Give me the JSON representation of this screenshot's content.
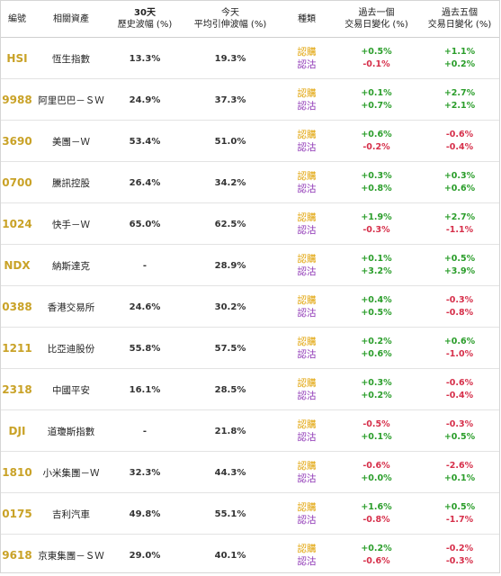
{
  "header": {
    "code": "編號",
    "asset": "相關資產",
    "hv_line1": "30天",
    "hv_line2": "歷史波幅 (%)",
    "iv_line1": "今天",
    "iv_line2": "平均引伸波幅 (%)",
    "type": "種類",
    "d1_line1": "過去一個",
    "d1_line2": "交易日變化 (%)",
    "d5_line1": "過去五個",
    "d5_line2": "交易日變化 (%)"
  },
  "labels": {
    "bull": "認購",
    "bear": "認沽"
  },
  "rows": [
    {
      "code": "HSI",
      "name": "恆生指數",
      "hv": "13.3%",
      "iv": "19.3%",
      "d1_bull": "+0.5%",
      "d1_bear": "-0.1%",
      "d5_bull": "+1.1%",
      "d5_bear": "+0.2%"
    },
    {
      "code": "9988",
      "name": "阿里巴巴－ＳＷ",
      "hv": "24.9%",
      "iv": "37.3%",
      "d1_bull": "+0.1%",
      "d1_bear": "+0.7%",
      "d5_bull": "+2.7%",
      "d5_bear": "+2.1%"
    },
    {
      "code": "3690",
      "name": "美團－Ｗ",
      "hv": "53.4%",
      "iv": "51.0%",
      "d1_bull": "+0.6%",
      "d1_bear": "-0.2%",
      "d5_bull": "-0.6%",
      "d5_bear": "-0.4%"
    },
    {
      "code": "0700",
      "name": "騰訊控股",
      "hv": "26.4%",
      "iv": "34.2%",
      "d1_bull": "+0.3%",
      "d1_bear": "+0.8%",
      "d5_bull": "+0.3%",
      "d5_bear": "+0.6%"
    },
    {
      "code": "1024",
      "name": "快手－Ｗ",
      "hv": "65.0%",
      "iv": "62.5%",
      "d1_bull": "+1.9%",
      "d1_bear": "-0.3%",
      "d5_bull": "+2.7%",
      "d5_bear": "-1.1%"
    },
    {
      "code": "NDX",
      "name": "納斯達克",
      "hv": "-",
      "iv": "28.9%",
      "d1_bull": "+0.1%",
      "d1_bear": "+3.2%",
      "d5_bull": "+0.5%",
      "d5_bear": "+3.9%"
    },
    {
      "code": "0388",
      "name": "香港交易所",
      "hv": "24.6%",
      "iv": "30.2%",
      "d1_bull": "+0.4%",
      "d1_bear": "+0.5%",
      "d5_bull": "-0.3%",
      "d5_bear": "-0.8%"
    },
    {
      "code": "1211",
      "name": "比亞迪股份",
      "hv": "55.8%",
      "iv": "57.5%",
      "d1_bull": "+0.2%",
      "d1_bear": "+0.6%",
      "d5_bull": "+0.6%",
      "d5_bear": "-1.0%"
    },
    {
      "code": "2318",
      "name": "中國平安",
      "hv": "16.1%",
      "iv": "28.5%",
      "d1_bull": "+0.3%",
      "d1_bear": "+0.2%",
      "d5_bull": "-0.6%",
      "d5_bear": "-0.4%"
    },
    {
      "code": "DJI",
      "name": "道瓊斯指數",
      "hv": "-",
      "iv": "21.8%",
      "d1_bull": "-0.5%",
      "d1_bear": "+0.1%",
      "d5_bull": "-0.3%",
      "d5_bear": "+0.5%"
    },
    {
      "code": "1810",
      "name": "小米集團－Ｗ",
      "hv": "32.3%",
      "iv": "44.3%",
      "d1_bull": "-0.6%",
      "d1_bear": "+0.0%",
      "d5_bull": "-2.6%",
      "d5_bear": "+0.1%"
    },
    {
      "code": "0175",
      "name": "吉利汽車",
      "hv": "49.8%",
      "iv": "55.1%",
      "d1_bull": "+1.6%",
      "d1_bear": "-0.8%",
      "d5_bull": "+0.5%",
      "d5_bear": "-1.7%"
    },
    {
      "code": "9618",
      "name": "京東集團－ＳＷ",
      "hv": "29.0%",
      "iv": "40.1%",
      "d1_bull": "+0.2%",
      "d1_bear": "-0.6%",
      "d5_bull": "-0.2%",
      "d5_bear": "-0.3%"
    }
  ],
  "colors": {
    "code": "#c9a227",
    "bull": "#e0a100",
    "bear": "#8e35b5",
    "positive": "#2a9d2a",
    "negative": "#d62f4a"
  }
}
